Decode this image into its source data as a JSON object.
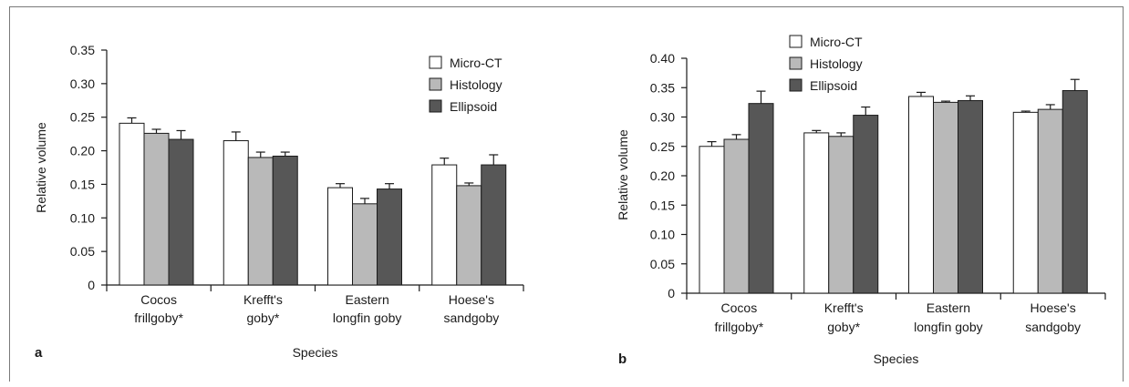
{
  "panels": [
    {
      "letter": "a",
      "chart_data": {
        "type": "bar",
        "categories": [
          [
            "Cocos",
            "frillgoby*"
          ],
          [
            "Krefft's",
            "goby*"
          ],
          [
            "Eastern",
            "longfin goby"
          ],
          [
            "Hoese's",
            "sandgoby"
          ]
        ],
        "series": [
          {
            "name": "Micro-CT",
            "values": [
              0.241,
              0.215,
              0.145,
              0.179
            ],
            "errors": [
              0.008,
              0.013,
              0.006,
              0.01
            ],
            "color": "#ffffff"
          },
          {
            "name": "Histology",
            "values": [
              0.226,
              0.19,
              0.121,
              0.148
            ],
            "errors": [
              0.006,
              0.008,
              0.008,
              0.004
            ],
            "color": "#b9b9b9"
          },
          {
            "name": "Ellipsoid",
            "values": [
              0.217,
              0.192,
              0.143,
              0.179
            ],
            "errors": [
              0.013,
              0.006,
              0.008,
              0.015
            ],
            "color": "#575757"
          }
        ],
        "xlabel": "Species",
        "ylabel": "Relative volume",
        "ylim": [
          0,
          0.35
        ],
        "yticks": [
          "0",
          "0.05",
          "0.10",
          "0.15",
          "0.20",
          "0.25",
          "0.30",
          "0.35"
        ],
        "legend_position": "top-right",
        "grid": false
      }
    },
    {
      "letter": "b",
      "chart_data": {
        "type": "bar",
        "categories": [
          [
            "Cocos",
            "frillgoby*"
          ],
          [
            "Krefft's",
            "goby*"
          ],
          [
            "Eastern",
            "longfin goby"
          ],
          [
            "Hoese's",
            "sandgoby"
          ]
        ],
        "series": [
          {
            "name": "Micro-CT",
            "values": [
              0.25,
              0.273,
              0.335,
              0.308
            ],
            "errors": [
              0.008,
              0.004,
              0.007,
              0.002
            ],
            "color": "#ffffff"
          },
          {
            "name": "Histology",
            "values": [
              0.262,
              0.267,
              0.325,
              0.313
            ],
            "errors": [
              0.008,
              0.006,
              0.002,
              0.008
            ],
            "color": "#b9b9b9"
          },
          {
            "name": "Ellipsoid",
            "values": [
              0.323,
              0.303,
              0.328,
              0.345
            ],
            "errors": [
              0.021,
              0.014,
              0.008,
              0.019
            ],
            "color": "#575757"
          }
        ],
        "xlabel": "Species",
        "ylabel": "Relative volume",
        "ylim": [
          0,
          0.4
        ],
        "yticks": [
          "0",
          "0.05",
          "0.10",
          "0.15",
          "0.20",
          "0.25",
          "0.30",
          "0.35",
          "0.40"
        ],
        "legend_position": "top-left",
        "grid": false
      }
    }
  ]
}
